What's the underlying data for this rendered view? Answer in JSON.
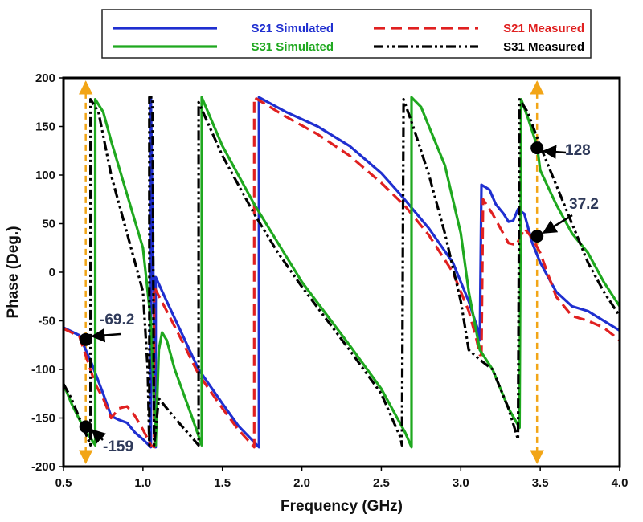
{
  "chart_data": {
    "type": "line",
    "xlabel": "Frequency (GHz)",
    "ylabel": "Phase (Deg.)",
    "xlim": [
      0.5,
      4.0
    ],
    "ylim": [
      -200,
      200
    ],
    "xticks": [
      "0.5",
      "1.0",
      "1.5",
      "2.0",
      "2.5",
      "3.0",
      "3.5",
      "4.0"
    ],
    "yticks": [
      "-200",
      "-150",
      "-100",
      "-50",
      "0",
      "50",
      "100",
      "150",
      "200"
    ],
    "grid": false,
    "legend_position": "top",
    "series": [
      {
        "name": "S21 Simulated",
        "color": "#1f2fd0",
        "dash": "solid",
        "points": [
          [
            0.5,
            -57
          ],
          [
            0.6,
            -65
          ],
          [
            0.68,
            -95
          ],
          [
            0.75,
            -125
          ],
          [
            0.8,
            -148
          ],
          [
            0.85,
            -152
          ],
          [
            0.9,
            -155
          ],
          [
            0.95,
            -165
          ],
          [
            1.0,
            -172
          ],
          [
            1.05,
            -180
          ],
          [
            1.05,
            180
          ],
          [
            1.08,
            -180
          ],
          [
            1.08,
            -5
          ],
          [
            1.15,
            -30
          ],
          [
            1.25,
            -65
          ],
          [
            1.35,
            -100
          ],
          [
            1.5,
            -135
          ],
          [
            1.6,
            -158
          ],
          [
            1.73,
            -180
          ],
          [
            1.73,
            180
          ],
          [
            1.9,
            165
          ],
          [
            2.1,
            150
          ],
          [
            2.3,
            130
          ],
          [
            2.5,
            102
          ],
          [
            2.62,
            80
          ],
          [
            2.8,
            45
          ],
          [
            2.95,
            10
          ],
          [
            3.05,
            -30
          ],
          [
            3.11,
            -60
          ],
          [
            3.12,
            -70
          ],
          [
            3.13,
            90
          ],
          [
            3.18,
            85
          ],
          [
            3.22,
            70
          ],
          [
            3.27,
            60
          ],
          [
            3.3,
            52
          ],
          [
            3.33,
            53
          ],
          [
            3.36,
            65
          ],
          [
            3.4,
            60
          ],
          [
            3.45,
            30
          ],
          [
            3.5,
            10
          ],
          [
            3.6,
            -20
          ],
          [
            3.7,
            -35
          ],
          [
            3.8,
            -40
          ],
          [
            3.9,
            -50
          ],
          [
            4.0,
            -60
          ]
        ]
      },
      {
        "name": "S21 Measured",
        "color": "#e02020",
        "dash": "dashed",
        "points": [
          [
            0.5,
            -58
          ],
          [
            0.6,
            -66
          ],
          [
            0.7,
            -115
          ],
          [
            0.75,
            -130
          ],
          [
            0.8,
            -150
          ],
          [
            0.85,
            -140
          ],
          [
            0.9,
            -138
          ],
          [
            0.95,
            -148
          ],
          [
            1.0,
            -162
          ],
          [
            1.05,
            -178
          ],
          [
            1.07,
            -180
          ],
          [
            1.07,
            -15
          ],
          [
            1.15,
            -40
          ],
          [
            1.25,
            -72
          ],
          [
            1.35,
            -105
          ],
          [
            1.5,
            -140
          ],
          [
            1.6,
            -162
          ],
          [
            1.7,
            -180
          ],
          [
            1.7,
            180
          ],
          [
            1.9,
            160
          ],
          [
            2.1,
            142
          ],
          [
            2.3,
            120
          ],
          [
            2.5,
            92
          ],
          [
            2.65,
            68
          ],
          [
            2.8,
            38
          ],
          [
            2.95,
            0
          ],
          [
            3.05,
            -40
          ],
          [
            3.1,
            -70
          ],
          [
            3.12,
            -85
          ],
          [
            3.13,
            -85
          ],
          [
            3.14,
            75
          ],
          [
            3.2,
            60
          ],
          [
            3.25,
            45
          ],
          [
            3.3,
            30
          ],
          [
            3.35,
            28
          ],
          [
            3.4,
            45
          ],
          [
            3.45,
            35
          ],
          [
            3.5,
            20
          ],
          [
            3.6,
            -25
          ],
          [
            3.7,
            -45
          ],
          [
            3.8,
            -50
          ],
          [
            3.9,
            -57
          ],
          [
            4.0,
            -70
          ]
        ]
      },
      {
        "name": "S31 Simulated",
        "color": "#1fa81f",
        "dash": "solid",
        "points": [
          [
            0.5,
            -115
          ],
          [
            0.55,
            -135
          ],
          [
            0.62,
            -158
          ],
          [
            0.7,
            -178
          ],
          [
            0.7,
            178
          ],
          [
            0.75,
            165
          ],
          [
            0.8,
            135
          ],
          [
            0.9,
            80
          ],
          [
            1.0,
            25
          ],
          [
            1.05,
            -50
          ],
          [
            1.08,
            -178
          ],
          [
            1.1,
            -80
          ],
          [
            1.12,
            -62
          ],
          [
            1.15,
            -70
          ],
          [
            1.2,
            -100
          ],
          [
            1.3,
            -145
          ],
          [
            1.37,
            -178
          ],
          [
            1.37,
            180
          ],
          [
            1.5,
            130
          ],
          [
            1.7,
            70
          ],
          [
            1.85,
            30
          ],
          [
            2.0,
            -10
          ],
          [
            2.3,
            -75
          ],
          [
            2.5,
            -120
          ],
          [
            2.65,
            -165
          ],
          [
            2.69,
            -180
          ],
          [
            2.69,
            180
          ],
          [
            2.75,
            170
          ],
          [
            2.8,
            150
          ],
          [
            2.9,
            110
          ],
          [
            3.0,
            40
          ],
          [
            3.05,
            -20
          ],
          [
            3.12,
            -80
          ],
          [
            3.2,
            -100
          ],
          [
            3.3,
            -140
          ],
          [
            3.37,
            -160
          ],
          [
            3.38,
            178
          ],
          [
            3.42,
            160
          ],
          [
            3.48,
            130
          ],
          [
            3.5,
            105
          ],
          [
            3.6,
            70
          ],
          [
            3.7,
            40
          ],
          [
            3.8,
            20
          ],
          [
            3.9,
            -10
          ],
          [
            4.0,
            -35
          ]
        ]
      },
      {
        "name": "S31 Measured",
        "color": "#000000",
        "dash": "dashdotdot",
        "points": [
          [
            0.5,
            -115
          ],
          [
            0.55,
            -130
          ],
          [
            0.62,
            -158
          ],
          [
            0.67,
            -178
          ],
          [
            0.67,
            178
          ],
          [
            0.72,
            165
          ],
          [
            0.8,
            100
          ],
          [
            0.9,
            40
          ],
          [
            1.0,
            -20
          ],
          [
            1.03,
            -100
          ],
          [
            1.04,
            -178
          ],
          [
            1.04,
            180
          ],
          [
            1.06,
            180
          ],
          [
            1.07,
            -178
          ],
          [
            1.1,
            -130
          ],
          [
            1.2,
            -150
          ],
          [
            1.35,
            -178
          ],
          [
            1.35,
            175
          ],
          [
            1.5,
            120
          ],
          [
            1.7,
            60
          ],
          [
            1.85,
            20
          ],
          [
            2.0,
            -15
          ],
          [
            2.3,
            -80
          ],
          [
            2.5,
            -125
          ],
          [
            2.62,
            -170
          ],
          [
            2.63,
            -178
          ],
          [
            2.64,
            178
          ],
          [
            2.7,
            150
          ],
          [
            2.8,
            100
          ],
          [
            2.9,
            40
          ],
          [
            3.0,
            -30
          ],
          [
            3.05,
            -80
          ],
          [
            3.12,
            -90
          ],
          [
            3.2,
            -100
          ],
          [
            3.3,
            -140
          ],
          [
            3.36,
            -172
          ],
          [
            3.37,
            178
          ],
          [
            3.42,
            165
          ],
          [
            3.5,
            130
          ],
          [
            3.6,
            90
          ],
          [
            3.7,
            50
          ],
          [
            3.8,
            10
          ],
          [
            3.9,
            -20
          ],
          [
            4.0,
            -45
          ]
        ]
      }
    ],
    "markers": [
      {
        "x": 0.64,
        "y": -69.2,
        "label": "-69.2"
      },
      {
        "x": 0.64,
        "y": -159,
        "label": "-159"
      },
      {
        "x": 3.48,
        "y": 128,
        "label": "128"
      },
      {
        "x": 3.48,
        "y": 37.2,
        "label": "37.2"
      }
    ],
    "vlines": [
      0.64,
      3.48
    ]
  }
}
